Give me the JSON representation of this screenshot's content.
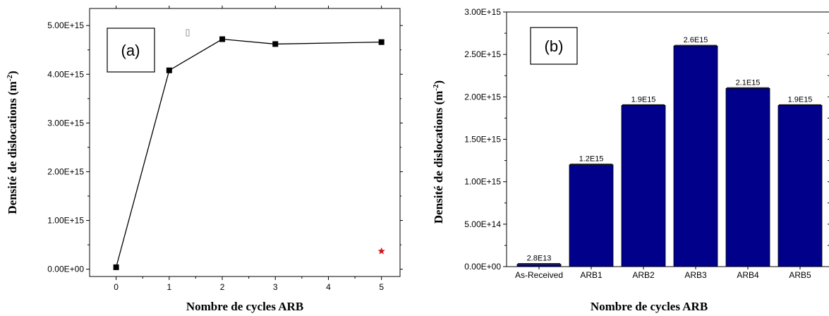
{
  "chart_data": [
    {
      "type": "line",
      "panel_label": "(a)",
      "xlabel": "Nombre de cycles ARB",
      "ylabel_main": "Densité de dislocations (m",
      "ylabel_sup": "-2",
      "ylabel_end": ")",
      "xlim": [
        -0.5,
        5.35
      ],
      "ylim": [
        -150000000000000.0,
        5350000000000000.0
      ],
      "xticks": [
        0,
        1,
        2,
        3,
        4,
        5
      ],
      "xtick_labels": [
        "0",
        "1",
        "2",
        "3",
        "4",
        "5"
      ],
      "yticks": [
        0,
        1000000000000000.0,
        2000000000000000.0,
        3000000000000000.0,
        4000000000000000.0,
        5000000000000000.0
      ],
      "ytick_labels": [
        "0.00E+00",
        "1.00E+15",
        "2.00E+15",
        "3.00E+15",
        "4.00E+15",
        "5.00E+15"
      ],
      "x": [
        0,
        1,
        2,
        3,
        4,
        5
      ],
      "series": [
        {
          "values": [
            40000000000000.0,
            4080000000000000.0,
            4720000000000000.0,
            4620000000000000.0,
            null,
            4660000000000000.0
          ]
        }
      ],
      "marker_star": {
        "x": 5,
        "y": 370000000000000.0,
        "color": "#d01818"
      },
      "grid": false
    },
    {
      "type": "bar",
      "panel_label": "(b)",
      "xlabel": "Nombre de cycles ARB",
      "ylabel_main": "Densité de dislocations (m",
      "ylabel_sup": "-2",
      "ylabel_end": ")",
      "categories": [
        "As-Received",
        "ARB1",
        "ARB2",
        "ARB3",
        "ARB4",
        "ARB5"
      ],
      "values": [
        28000000000000.0,
        1200000000000000.0,
        1900000000000000.0,
        2600000000000000.0,
        2100000000000000.0,
        1900000000000000.0
      ],
      "data_labels": [
        "2.8E13",
        "1.2E15",
        "1.9E15",
        "2.6E15",
        "2.1E15",
        "1.9E15"
      ],
      "ylim": [
        0,
        3000000000000000.0
      ],
      "yticks": [
        0,
        500000000000000.0,
        1000000000000000.0,
        1500000000000000.0,
        2000000000000000.0,
        2500000000000000.0,
        3000000000000000.0
      ],
      "ytick_labels": [
        "0.00E+00",
        "5.00E+14",
        "1.00E+15",
        "1.50E+15",
        "2.00E+15",
        "2.50E+15",
        "3.00E+15"
      ],
      "bar_color": "#00008b",
      "grid": false
    }
  ]
}
